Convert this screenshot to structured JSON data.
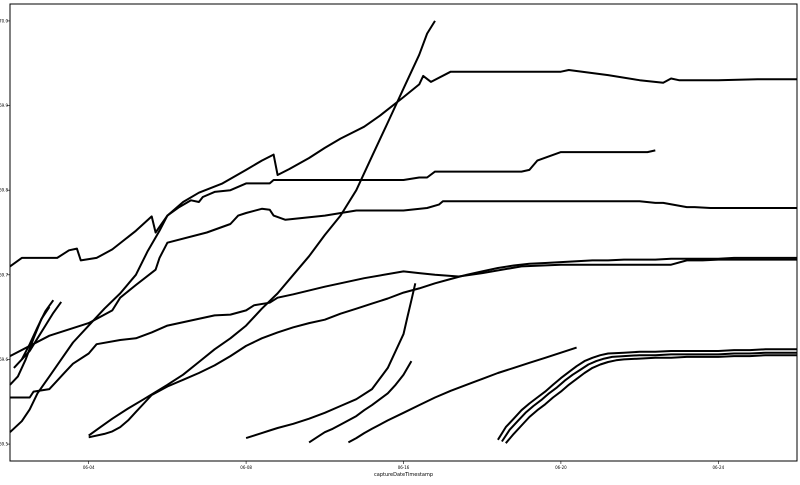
{
  "chart_data": {
    "type": "line",
    "title": "",
    "xlabel": "captureDateTimestamp",
    "ylabel": "",
    "x_ticks": [
      {
        "value": 0.1,
        "label": "06-04"
      },
      {
        "value": 0.3,
        "label": "06-08"
      },
      {
        "value": 0.5,
        "label": "06-16"
      },
      {
        "value": 0.7,
        "label": "06-20"
      },
      {
        "value": 0.9,
        "label": "06-24"
      }
    ],
    "y_ticks": [
      {
        "value": 169.5,
        "label": "169.5"
      },
      {
        "value": 169.6,
        "label": "169.6"
      },
      {
        "value": 169.7,
        "label": "169.7"
      },
      {
        "value": 169.8,
        "label": "169.8"
      },
      {
        "value": 169.9,
        "label": "169.9"
      },
      {
        "value": 170.0,
        "label": "170.0"
      }
    ],
    "xlim": [
      0.0,
      1.0
    ],
    "ylim": [
      169.48,
      170.02
    ],
    "grid": false,
    "legend": "none",
    "line_color": "#000000",
    "series": [
      {
        "x": [
          0.0,
          0.015,
          0.06,
          0.075,
          0.085,
          0.09,
          0.11,
          0.13,
          0.16,
          0.18,
          0.185,
          0.2,
          0.22,
          0.24,
          0.27,
          0.3,
          0.32,
          0.335,
          0.34,
          0.355,
          0.38,
          0.4,
          0.42,
          0.45,
          0.47,
          0.5,
          0.52,
          0.525,
          0.535,
          0.56,
          0.6,
          0.65,
          0.7,
          0.71,
          0.76,
          0.8,
          0.83,
          0.84,
          0.85,
          0.9,
          0.95,
          1.0
        ],
        "y": [
          169.71,
          169.72,
          169.72,
          169.729,
          169.731,
          169.717,
          169.72,
          169.73,
          169.752,
          169.769,
          169.75,
          169.77,
          169.786,
          169.797,
          169.808,
          169.824,
          169.835,
          169.842,
          169.818,
          169.825,
          169.838,
          169.85,
          169.861,
          169.875,
          169.888,
          169.91,
          169.925,
          169.935,
          169.928,
          169.94,
          169.94,
          169.94,
          169.94,
          169.942,
          169.936,
          169.93,
          169.927,
          169.932,
          169.93,
          169.93,
          169.931,
          169.931
        ]
      },
      {
        "x": [
          0.0,
          0.015,
          0.025,
          0.035,
          0.05,
          0.065,
          0.08,
          0.1,
          0.12,
          0.14,
          0.16,
          0.175,
          0.19,
          0.2,
          0.215,
          0.23,
          0.24,
          0.245,
          0.26,
          0.28,
          0.3,
          0.31,
          0.33,
          0.335,
          0.4,
          0.45,
          0.5,
          0.52,
          0.53,
          0.54,
          0.57,
          0.6,
          0.65,
          0.66,
          0.67,
          0.7,
          0.8,
          0.81,
          0.82
        ],
        "y": [
          169.514,
          169.527,
          169.541,
          169.56,
          169.58,
          169.6,
          169.62,
          169.64,
          169.66,
          169.678,
          169.7,
          169.728,
          169.752,
          169.77,
          169.78,
          169.788,
          169.786,
          169.792,
          169.798,
          169.8,
          169.808,
          169.808,
          169.808,
          169.812,
          169.812,
          169.812,
          169.812,
          169.815,
          169.815,
          169.822,
          169.822,
          169.822,
          169.822,
          169.824,
          169.835,
          169.845,
          169.845,
          169.845,
          169.847
        ]
      },
      {
        "x": [
          0.0,
          0.05,
          0.1,
          0.13,
          0.14,
          0.16,
          0.185,
          0.19,
          0.2,
          0.25,
          0.28,
          0.29,
          0.3,
          0.32,
          0.33,
          0.335,
          0.35,
          0.4,
          0.44,
          0.47,
          0.5,
          0.53,
          0.545,
          0.55,
          0.57,
          0.6,
          0.65,
          0.7,
          0.75,
          0.8,
          0.82,
          0.83,
          0.86,
          0.87,
          0.89,
          0.9,
          1.0
        ],
        "y": [
          169.604,
          169.628,
          169.643,
          169.658,
          169.673,
          169.688,
          169.706,
          169.72,
          169.738,
          169.75,
          169.76,
          169.77,
          169.773,
          169.778,
          169.777,
          169.77,
          169.765,
          169.77,
          169.776,
          169.776,
          169.776,
          169.779,
          169.783,
          169.787,
          169.787,
          169.787,
          169.787,
          169.787,
          169.787,
          169.787,
          169.785,
          169.785,
          169.78,
          169.78,
          169.779,
          169.779,
          169.779
        ]
      },
      {
        "x": [
          0.0,
          0.025,
          0.03,
          0.05,
          0.07,
          0.08,
          0.1,
          0.11,
          0.14,
          0.16,
          0.18,
          0.2,
          0.23,
          0.26,
          0.28,
          0.3,
          0.31,
          0.33,
          0.34,
          0.36,
          0.4,
          0.42,
          0.45,
          0.5,
          0.52,
          0.54,
          0.57,
          0.6,
          0.65,
          0.7,
          0.75,
          0.8,
          0.82,
          0.84,
          0.86,
          0.88,
          0.9,
          0.95,
          1.0
        ],
        "y": [
          169.555,
          169.555,
          169.562,
          169.565,
          169.585,
          169.595,
          169.607,
          169.618,
          169.623,
          169.625,
          169.632,
          169.64,
          169.646,
          169.652,
          169.653,
          169.658,
          169.664,
          169.667,
          169.673,
          169.677,
          169.686,
          169.69,
          169.696,
          169.704,
          169.702,
          169.7,
          169.698,
          169.702,
          169.71,
          169.712,
          169.712,
          169.712,
          169.712,
          169.712,
          169.717,
          169.717,
          169.718,
          169.718,
          169.718
        ]
      },
      {
        "x": [
          0.1,
          0.12,
          0.13,
          0.14,
          0.15,
          0.16,
          0.17,
          0.18,
          0.2,
          0.22,
          0.24,
          0.26,
          0.28,
          0.3,
          0.32,
          0.34,
          0.36,
          0.38,
          0.4,
          0.42,
          0.44,
          0.46,
          0.48,
          0.5,
          0.52,
          0.54,
          0.56,
          0.58,
          0.6,
          0.62,
          0.64,
          0.66,
          0.68,
          0.7,
          0.72,
          0.74,
          0.76,
          0.78,
          0.8,
          0.82,
          0.84,
          0.86,
          0.88,
          0.9,
          0.92,
          0.94,
          0.96,
          0.98,
          1.0
        ],
        "y": [
          169.508,
          169.512,
          169.515,
          169.52,
          169.528,
          169.538,
          169.548,
          169.558,
          169.568,
          169.576,
          169.584,
          169.593,
          169.604,
          169.616,
          169.625,
          169.632,
          169.638,
          169.643,
          169.647,
          169.654,
          169.66,
          169.666,
          169.672,
          169.679,
          169.684,
          169.69,
          169.695,
          169.7,
          169.704,
          169.708,
          169.711,
          169.713,
          169.714,
          169.715,
          169.716,
          169.717,
          169.717,
          169.718,
          169.718,
          169.718,
          169.719,
          169.719,
          169.719,
          169.719,
          169.72,
          169.72,
          169.72,
          169.72,
          169.72
        ]
      },
      {
        "x": [
          0.1,
          0.115,
          0.13,
          0.15,
          0.17,
          0.2,
          0.22,
          0.24,
          0.26,
          0.28,
          0.3,
          0.32,
          0.34,
          0.36,
          0.38,
          0.4,
          0.42,
          0.44,
          0.46,
          0.48,
          0.5,
          0.52,
          0.53,
          0.54
        ],
        "y": [
          169.51,
          169.52,
          169.53,
          169.542,
          169.553,
          169.57,
          169.582,
          169.597,
          169.612,
          169.625,
          169.64,
          169.66,
          169.678,
          169.7,
          169.722,
          169.747,
          169.77,
          169.8,
          169.84,
          169.88,
          169.92,
          169.96,
          169.985,
          170.0
        ]
      },
      {
        "x": [
          0.3,
          0.31,
          0.32,
          0.33,
          0.34,
          0.36,
          0.38,
          0.4,
          0.42,
          0.44,
          0.46,
          0.48,
          0.5,
          0.505,
          0.51,
          0.515
        ],
        "y": [
          169.507,
          169.51,
          169.513,
          169.516,
          169.519,
          169.524,
          169.53,
          169.537,
          169.545,
          169.553,
          169.565,
          169.59,
          169.63,
          169.65,
          169.67,
          169.69
        ]
      },
      {
        "x": [
          0.38,
          0.39,
          0.4,
          0.41,
          0.42,
          0.43,
          0.44,
          0.45,
          0.46,
          0.47,
          0.48,
          0.49,
          0.5,
          0.51
        ],
        "y": [
          169.502,
          169.508,
          169.514,
          169.518,
          169.523,
          169.528,
          169.533,
          169.54,
          169.546,
          169.553,
          169.56,
          169.57,
          169.582,
          169.598
        ]
      },
      {
        "x": [
          0.43,
          0.44,
          0.45,
          0.46,
          0.47,
          0.48,
          0.5,
          0.52,
          0.54,
          0.56,
          0.58,
          0.6,
          0.62,
          0.64,
          0.66,
          0.68,
          0.7,
          0.72
        ],
        "y": [
          169.502,
          169.507,
          169.513,
          169.518,
          169.523,
          169.528,
          169.537,
          169.546,
          169.555,
          169.563,
          169.57,
          169.577,
          169.584,
          169.59,
          169.596,
          169.602,
          169.608,
          169.614
        ]
      },
      {
        "x": [
          0.62,
          0.63,
          0.64,
          0.65,
          0.66,
          0.67,
          0.68,
          0.69,
          0.7,
          0.71,
          0.72,
          0.73,
          0.74,
          0.75,
          0.76,
          0.78,
          0.8,
          0.82,
          0.84,
          0.86,
          0.88,
          0.9,
          0.92,
          0.94,
          0.96,
          0.98,
          1.0
        ],
        "y": [
          169.505,
          169.52,
          169.53,
          169.54,
          169.548,
          169.555,
          169.562,
          169.57,
          169.578,
          169.585,
          169.592,
          169.598,
          169.602,
          169.605,
          169.607,
          169.608,
          169.609,
          169.609,
          169.61,
          169.61,
          169.61,
          169.61,
          169.611,
          169.611,
          169.612,
          169.612,
          169.612
        ]
      },
      {
        "x": [
          0.625,
          0.635,
          0.645,
          0.655,
          0.665,
          0.675,
          0.685,
          0.695,
          0.705,
          0.715,
          0.725,
          0.735,
          0.745,
          0.755,
          0.765,
          0.78,
          0.8,
          0.82,
          0.84,
          0.86,
          0.88,
          0.9,
          0.92,
          0.94,
          0.96,
          0.98,
          1.0
        ],
        "y": [
          169.503,
          169.517,
          169.527,
          169.537,
          169.545,
          169.552,
          169.56,
          169.567,
          169.575,
          169.582,
          169.588,
          169.594,
          169.598,
          169.601,
          169.603,
          169.604,
          169.605,
          169.605,
          169.606,
          169.606,
          169.606,
          169.606,
          169.607,
          169.607,
          169.608,
          169.608,
          169.608
        ]
      },
      {
        "x": [
          0.63,
          0.64,
          0.65,
          0.66,
          0.67,
          0.68,
          0.69,
          0.7,
          0.71,
          0.72,
          0.73,
          0.74,
          0.75,
          0.76,
          0.77,
          0.78,
          0.8,
          0.82,
          0.84,
          0.86,
          0.88,
          0.9,
          0.92,
          0.94,
          0.96,
          0.98,
          1.0
        ],
        "y": [
          169.501,
          169.512,
          169.522,
          169.532,
          169.54,
          169.547,
          169.555,
          169.562,
          169.57,
          169.577,
          169.584,
          169.59,
          169.594,
          169.597,
          169.599,
          169.6,
          169.601,
          169.602,
          169.602,
          169.603,
          169.603,
          169.603,
          169.604,
          169.604,
          169.605,
          169.605,
          169.605
        ]
      },
      {
        "x": [
          0.0,
          0.01,
          0.02,
          0.03,
          0.04,
          0.05
        ],
        "y": [
          169.57,
          169.58,
          169.6,
          169.625,
          169.648,
          169.662
        ]
      },
      {
        "x": [
          0.005,
          0.015,
          0.025,
          0.035,
          0.045,
          0.055
        ],
        "y": [
          169.59,
          169.6,
          169.618,
          169.638,
          169.657,
          169.67
        ]
      },
      {
        "x": [
          0.015,
          0.025,
          0.035,
          0.045,
          0.055,
          0.065
        ],
        "y": [
          169.6,
          169.61,
          169.625,
          169.64,
          169.655,
          169.668
        ]
      }
    ]
  }
}
